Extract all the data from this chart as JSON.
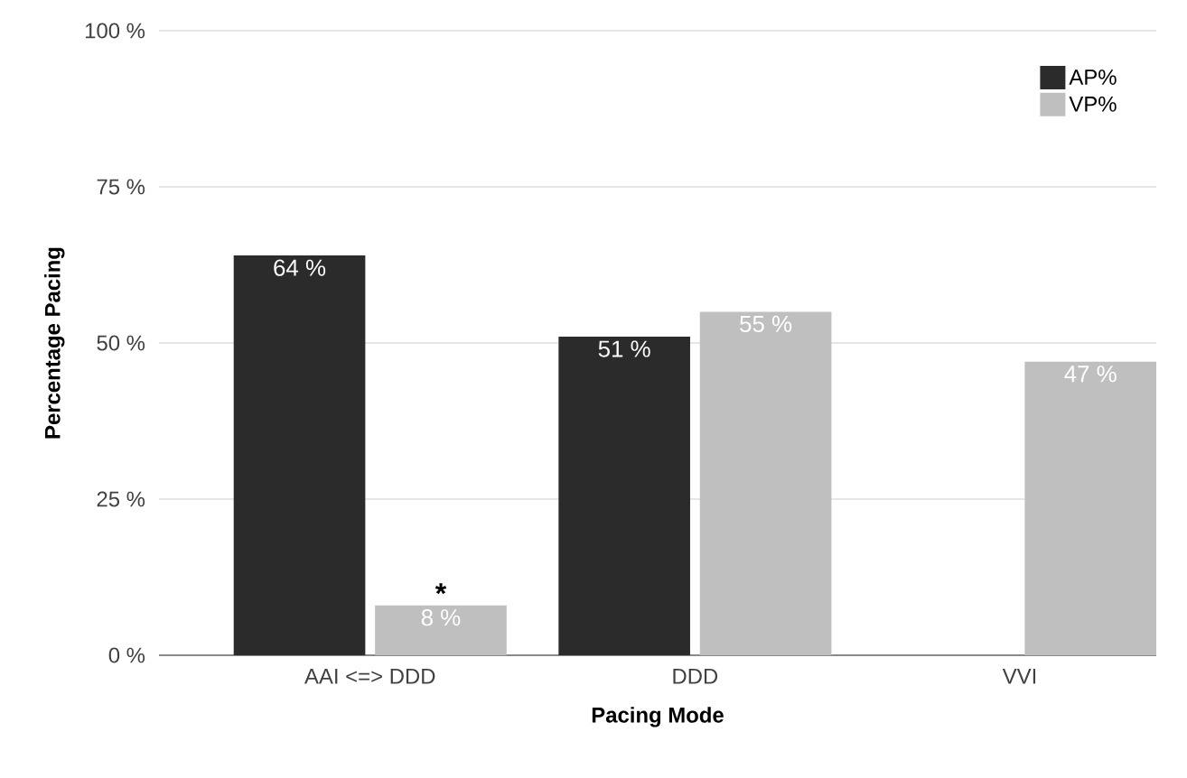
{
  "chart_data": {
    "type": "bar",
    "xlabel": "Pacing Mode",
    "ylabel": "Percentage Pacing",
    "categories": [
      "AAI <=> DDD",
      "DDD",
      "VVI"
    ],
    "series": [
      {
        "name": "AP%",
        "color": "#2b2b2b",
        "values": [
          64,
          51,
          null
        ],
        "value_labels": [
          "64 %",
          "51 %",
          null
        ]
      },
      {
        "name": "VP%",
        "color": "#bfbfbf",
        "values": [
          8,
          55,
          47
        ],
        "value_labels": [
          "8 %",
          "55 %",
          "47 %"
        ]
      }
    ],
    "ylim": [
      0,
      100
    ],
    "yticks": [
      {
        "value": 0,
        "label": "0 %"
      },
      {
        "value": 25,
        "label": "25 %"
      },
      {
        "value": 50,
        "label": "50 %"
      },
      {
        "value": 75,
        "label": "75 %"
      },
      {
        "value": 100,
        "label": "100 %"
      }
    ],
    "grid": "y",
    "legend": "top right",
    "annotations": [
      {
        "text": "*",
        "x": "AAI <=> DDD",
        "y": 8
      }
    ]
  }
}
